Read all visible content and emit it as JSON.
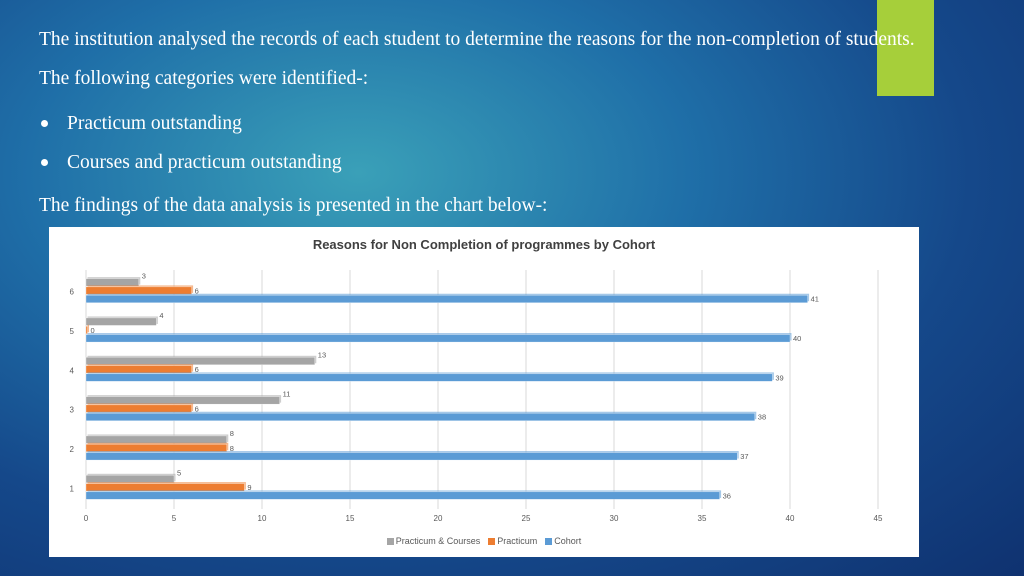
{
  "slide": {
    "intro": "The institution analysed the records of each student to determine the reasons for the non-completion of students. The following categories were identified-:",
    "bullets": [
      "Practicum outstanding",
      "Courses and practicum outstanding"
    ],
    "findings": "The findings of the data analysis is presented in the chart below-:"
  },
  "colors": {
    "accent_tab": "#a6cf3a",
    "practicum_courses": "#a5a5a5",
    "practicum": "#ed7d31",
    "cohort": "#5b9bd5"
  },
  "chart_data": {
    "type": "bar",
    "orientation": "horizontal",
    "title": "Reasons for Non Completion of programmes by Cohort",
    "categories": [
      "1",
      "2",
      "3",
      "4",
      "5",
      "6"
    ],
    "series": [
      {
        "name": "Practicum & Courses",
        "values": [
          5,
          8,
          11,
          13,
          4,
          3
        ]
      },
      {
        "name": "Practicum",
        "values": [
          9,
          8,
          6,
          6,
          0,
          6
        ]
      },
      {
        "name": "Cohort",
        "values": [
          36,
          37,
          38,
          39,
          40,
          41
        ]
      }
    ],
    "x_ticks": [
      0,
      5,
      10,
      15,
      20,
      25,
      30,
      35,
      40,
      45
    ],
    "xlim": [
      0,
      45
    ],
    "grid": true,
    "legend_position": "bottom",
    "data_labels": true
  }
}
